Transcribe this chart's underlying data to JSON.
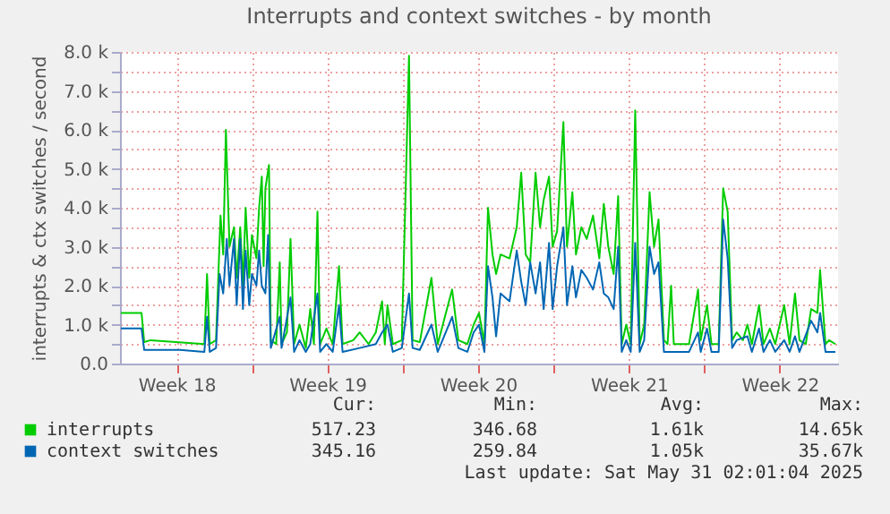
{
  "chart_data": {
    "type": "line",
    "title": "Interrupts and context switches - by month",
    "ylabel": "interrupts & ctx switches / second",
    "xlim": [
      "2025-04-27T21:00",
      "2025-05-31T05:00"
    ],
    "xticks": [
      {
        "value": "2025-04-30T12:00",
        "label": "Week 18"
      },
      {
        "value": "2025-05-04T00:00",
        "label": null
      },
      {
        "value": "2025-05-07T12:00",
        "label": "Week 19"
      },
      {
        "value": "2025-05-11T00:00",
        "label": null
      },
      {
        "value": "2025-05-14T12:00",
        "label": "Week 20"
      },
      {
        "value": "2025-05-18T00:00",
        "label": null
      },
      {
        "value": "2025-05-21T12:00",
        "label": "Week 21"
      },
      {
        "value": "2025-05-25T00:00",
        "label": null
      },
      {
        "value": "2025-05-28T12:00",
        "label": "Week 22"
      }
    ],
    "ylim": [
      0,
      8000
    ],
    "yticks": [
      {
        "value": 0,
        "label": "0.0"
      },
      {
        "value": 500,
        "label": null
      },
      {
        "value": 1000,
        "label": "1.0 k"
      },
      {
        "value": 1500,
        "label": null
      },
      {
        "value": 2000,
        "label": "2.0 k"
      },
      {
        "value": 2500,
        "label": null
      },
      {
        "value": 3000,
        "label": "3.0 k"
      },
      {
        "value": 3500,
        "label": null
      },
      {
        "value": 4000,
        "label": "4.0 k"
      },
      {
        "value": 4500,
        "label": null
      },
      {
        "value": 5000,
        "label": "5.0 k"
      },
      {
        "value": 5500,
        "label": null
      },
      {
        "value": 6000,
        "label": "6.0 k"
      },
      {
        "value": 6500,
        "label": null
      },
      {
        "value": 7000,
        "label": "7.0 k"
      },
      {
        "value": 7500,
        "label": null
      },
      {
        "value": 8000,
        "label": "8.0 k"
      }
    ],
    "grid": true,
    "legend": "bottom left",
    "marker": "none",
    "line_style": "solid",
    "series": [
      {
        "name": "interrupts",
        "color": "#00cc00",
        "x": [
          "2025-04-27T22:00",
          "2025-04-28T21:00",
          "2025-04-29T00:00",
          "2025-04-29T07:00",
          "2025-05-01T19:00",
          "2025-05-01T22:00",
          "2025-05-02T01:00",
          "2025-05-02T08:00",
          "2025-05-02T13:00",
          "2025-05-02T16:00",
          "2025-05-02T19:00",
          "2025-05-02T23:00",
          "2025-05-03T04:00",
          "2025-05-03T07:00",
          "2025-05-03T11:00",
          "2025-05-03T14:00",
          "2025-05-03T17:00",
          "2025-05-03T21:00",
          "2025-05-04T00:00",
          "2025-05-04T05:00",
          "2025-05-04T08:00",
          "2025-05-04T11:00",
          "2025-05-04T13:00",
          "2025-05-04T15:00",
          "2025-05-04T19:00",
          "2025-05-04T21:00",
          "2025-05-05T03:00",
          "2025-05-05T07:00",
          "2025-05-05T09:00",
          "2025-05-05T15:00",
          "2025-05-05T19:00",
          "2025-05-05T23:00",
          "2025-05-06T05:00",
          "2025-05-06T12:00",
          "2025-05-06T17:00",
          "2025-05-06T21:00",
          "2025-05-07T01:00",
          "2025-05-07T04:00",
          "2025-05-07T11:00",
          "2025-05-07T18:00",
          "2025-05-08T01:00",
          "2025-05-08T05:00",
          "2025-05-08T17:00",
          "2025-05-09T00:00",
          "2025-05-09T10:00",
          "2025-05-09T18:00",
          "2025-05-10T01:00",
          "2025-05-10T04:00",
          "2025-05-10T07:00",
          "2025-05-10T13:00",
          "2025-05-10T23:00",
          "2025-05-11T07:00",
          "2025-05-11T11:00",
          "2025-05-11T19:00",
          "2025-05-12T08:00",
          "2025-05-12T15:00",
          "2025-05-13T07:00",
          "2025-05-13T14:00",
          "2025-05-14T00:00",
          "2025-05-14T07:00",
          "2025-05-14T13:00",
          "2025-05-14T19:00",
          "2025-05-14T23:00",
          "2025-05-15T04:00",
          "2025-05-15T08:00",
          "2025-05-15T13:00",
          "2025-05-15T23:00",
          "2025-05-16T07:00",
          "2025-05-16T12:00",
          "2025-05-16T17:00",
          "2025-05-16T22:00",
          "2025-05-17T04:00",
          "2025-05-17T09:00",
          "2025-05-17T13:00",
          "2025-05-17T19:00",
          "2025-05-17T23:00",
          "2025-05-18T04:00",
          "2025-05-18T11:00",
          "2025-05-18T15:00",
          "2025-05-18T21:00",
          "2025-05-19T01:00",
          "2025-05-19T07:00",
          "2025-05-19T13:00",
          "2025-05-19T20:00",
          "2025-05-20T03:00",
          "2025-05-20T08:00",
          "2025-05-20T13:00",
          "2025-05-20T19:00",
          "2025-05-21T00:00",
          "2025-05-21T04:00",
          "2025-05-21T09:00",
          "2025-05-21T14:00",
          "2025-05-21T19:00",
          "2025-05-22T00:00",
          "2025-05-22T05:00",
          "2025-05-22T11:00",
          "2025-05-22T16:00",
          "2025-05-22T21:00",
          "2025-05-23T03:00",
          "2025-05-23T07:00",
          "2025-05-23T11:00",
          "2025-05-23T14:00",
          "2025-05-24T07:00",
          "2025-05-24T17:00",
          "2025-05-24T20:00",
          "2025-05-25T03:00",
          "2025-05-25T08:00",
          "2025-05-25T16:00",
          "2025-05-25T21:00",
          "2025-05-26T02:00",
          "2025-05-26T07:00",
          "2025-05-26T12:00",
          "2025-05-26T19:00",
          "2025-05-27T00:00",
          "2025-05-27T05:00",
          "2025-05-27T13:00",
          "2025-05-27T18:00",
          "2025-05-28T01:00",
          "2025-05-28T07:00",
          "2025-05-28T17:00",
          "2025-05-28T23:00",
          "2025-05-29T05:00",
          "2025-05-29T10:00",
          "2025-05-29T17:00",
          "2025-05-29T23:00",
          "2025-05-30T06:00",
          "2025-05-30T09:00",
          "2025-05-30T15:00",
          "2025-05-30T19:00",
          "2025-05-31T02:00"
        ],
        "values": [
          1300,
          1300,
          550,
          600,
          500,
          2300,
          500,
          600,
          3800,
          2800,
          6000,
          3000,
          3500,
          2200,
          3500,
          2000,
          4000,
          2200,
          3300,
          2700,
          4000,
          4800,
          2500,
          4500,
          5100,
          600,
          500,
          2600,
          500,
          800,
          3200,
          500,
          1000,
          400,
          1400,
          500,
          3900,
          500,
          900,
          500,
          2500,
          500,
          600,
          800,
          500,
          800,
          1600,
          500,
          1500,
          500,
          600,
          7900,
          600,
          550,
          2200,
          500,
          1900,
          600,
          500,
          1000,
          1300,
          500,
          4000,
          2800,
          2300,
          2800,
          2700,
          3500,
          4900,
          2800,
          2600,
          4900,
          3500,
          4200,
          4800,
          3000,
          3400,
          6200,
          3000,
          4400,
          2800,
          3500,
          3200,
          3800,
          2700,
          4100,
          3000,
          2300,
          4300,
          500,
          1000,
          500,
          6500,
          500,
          1000,
          4400,
          3000,
          3700,
          600,
          500,
          2000,
          500,
          500,
          1900,
          600,
          1500,
          500,
          500,
          4500,
          3900,
          600,
          800,
          600,
          1000,
          500,
          1500,
          500,
          900,
          500,
          1500,
          500,
          1800,
          600,
          500,
          1400,
          1300,
          2400,
          500,
          600,
          500
        ]
      },
      {
        "name": "context switches",
        "color": "#0066b3",
        "x": [
          "2025-04-27T22:00",
          "2025-04-28T21:00",
          "2025-04-29T00:00",
          "2025-04-30T16:00",
          "2025-05-01T19:00",
          "2025-05-01T22:00",
          "2025-05-02T01:00",
          "2025-05-02T08:00",
          "2025-05-02T12:00",
          "2025-05-02T16:00",
          "2025-05-02T20:00",
          "2025-05-02T23:00",
          "2025-05-03T04:00",
          "2025-05-03T07:00",
          "2025-05-03T11:00",
          "2025-05-03T14:00",
          "2025-05-03T17:00",
          "2025-05-03T21:00",
          "2025-05-04T00:00",
          "2025-05-04T05:00",
          "2025-05-04T08:00",
          "2025-05-04T11:00",
          "2025-05-04T15:00",
          "2025-05-04T18:00",
          "2025-05-04T21:00",
          "2025-05-05T07:00",
          "2025-05-05T09:00",
          "2025-05-05T19:00",
          "2025-05-05T23:00",
          "2025-05-06T05:00",
          "2025-05-06T12:00",
          "2025-05-06T17:00",
          "2025-05-07T01:00",
          "2025-05-07T04:00",
          "2025-05-07T11:00",
          "2025-05-07T18:00",
          "2025-05-08T01:00",
          "2025-05-08T05:00",
          "2025-05-09T00:00",
          "2025-05-09T18:00",
          "2025-05-10T01:00",
          "2025-05-10T07:00",
          "2025-05-10T13:00",
          "2025-05-10T23:00",
          "2025-05-11T07:00",
          "2025-05-11T11:00",
          "2025-05-11T19:00",
          "2025-05-12T08:00",
          "2025-05-12T15:00",
          "2025-05-13T07:00",
          "2025-05-13T14:00",
          "2025-05-14T00:00",
          "2025-05-14T07:00",
          "2025-05-14T13:00",
          "2025-05-14T19:00",
          "2025-05-14T23:00",
          "2025-05-15T04:00",
          "2025-05-15T08:00",
          "2025-05-15T13:00",
          "2025-05-15T23:00",
          "2025-05-16T07:00",
          "2025-05-16T12:00",
          "2025-05-16T17:00",
          "2025-05-16T22:00",
          "2025-05-17T04:00",
          "2025-05-17T09:00",
          "2025-05-17T13:00",
          "2025-05-17T19:00",
          "2025-05-17T23:00",
          "2025-05-18T04:00",
          "2025-05-18T11:00",
          "2025-05-18T15:00",
          "2025-05-18T21:00",
          "2025-05-19T01:00",
          "2025-05-19T07:00",
          "2025-05-19T13:00",
          "2025-05-19T20:00",
          "2025-05-20T03:00",
          "2025-05-20T08:00",
          "2025-05-20T13:00",
          "2025-05-20T19:00",
          "2025-05-21T00:00",
          "2025-05-21T04:00",
          "2025-05-21T09:00",
          "2025-05-21T14:00",
          "2025-05-21T19:00",
          "2025-05-22T00:00",
          "2025-05-22T05:00",
          "2025-05-22T11:00",
          "2025-05-22T16:00",
          "2025-05-22T21:00",
          "2025-05-23T03:00",
          "2025-05-23T14:00",
          "2025-05-24T07:00",
          "2025-05-24T17:00",
          "2025-05-24T20:00",
          "2025-05-25T03:00",
          "2025-05-25T08:00",
          "2025-05-25T16:00",
          "2025-05-25T21:00",
          "2025-05-26T02:00",
          "2025-05-26T07:00",
          "2025-05-26T12:00",
          "2025-05-27T00:00",
          "2025-05-27T05:00",
          "2025-05-27T13:00",
          "2025-05-27T18:00",
          "2025-05-28T01:00",
          "2025-05-28T07:00",
          "2025-05-28T17:00",
          "2025-05-28T23:00",
          "2025-05-29T05:00",
          "2025-05-29T10:00",
          "2025-05-29T23:00",
          "2025-05-30T06:00",
          "2025-05-30T09:00",
          "2025-05-30T15:00",
          "2025-05-31T02:00"
        ],
        "values": [
          900,
          900,
          350,
          350,
          300,
          1200,
          300,
          400,
          2300,
          1800,
          3200,
          2000,
          3200,
          1500,
          3200,
          1400,
          2900,
          1500,
          2300,
          2000,
          2900,
          2000,
          1800,
          3300,
          400,
          1200,
          400,
          1700,
          300,
          600,
          300,
          500,
          1800,
          300,
          500,
          300,
          1500,
          300,
          400,
          500,
          800,
          1000,
          300,
          400,
          1800,
          400,
          350,
          1000,
          300,
          1200,
          400,
          300,
          800,
          1000,
          300,
          2500,
          1700,
          700,
          1800,
          1600,
          2900,
          2100,
          1500,
          2600,
          1800,
          2600,
          1400,
          3100,
          1400,
          2500,
          3500,
          1500,
          2500,
          1700,
          2400,
          2200,
          1900,
          2600,
          1800,
          1700,
          1400,
          3000,
          300,
          600,
          300,
          3100,
          300,
          600,
          3000,
          2300,
          2600,
          300,
          300,
          300,
          800,
          300,
          900,
          300,
          300,
          3700,
          2700,
          400,
          600,
          700,
          300,
          900,
          300,
          600,
          300,
          600,
          300,
          700,
          300,
          1100,
          800,
          1300,
          300,
          300
        ]
      }
    ],
    "annotations": [
      "Cur:",
      "Min:",
      "Avg:",
      "Max:",
      "517.23",
      "346.68",
      "1.61k",
      "14.65k",
      "345.16",
      "259.84",
      "1.05k",
      "35.67k",
      "Last update: Sat May 31 02:01:04 2025"
    ]
  }
}
